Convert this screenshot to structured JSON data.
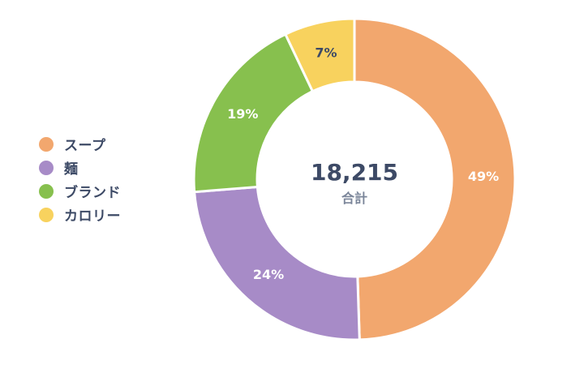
{
  "chart_data": {
    "type": "pie",
    "variant": "donut",
    "categories": [
      "スープ",
      "麺",
      "ブランド",
      "カロリー"
    ],
    "values": [
      49,
      24,
      19,
      7
    ],
    "value_labels": [
      "49%",
      "24%",
      "19%",
      "7%"
    ],
    "colors": [
      "#f2a76e",
      "#a78bc7",
      "#87c04e",
      "#f8d25e"
    ],
    "center_value": "18,215",
    "center_label": "合計",
    "legend_position": "left"
  }
}
